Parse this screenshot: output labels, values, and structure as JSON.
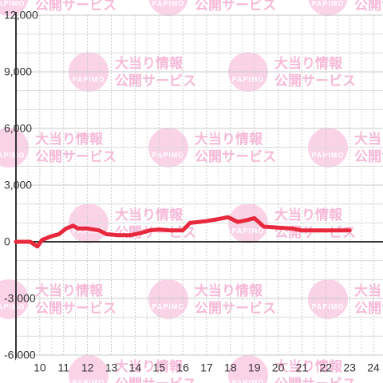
{
  "chart_data": {
    "type": "line",
    "watermark": {
      "lines": [
        "大当り情報",
        "公開サービス"
      ],
      "badge": "PAPIMO"
    },
    "x": [
      9,
      9.6,
      9.9,
      10.1,
      10.5,
      10.8,
      11.1,
      11.4,
      11.6,
      12,
      12.5,
      12.8,
      13.3,
      13.8,
      14.2,
      14.6,
      15,
      15.5,
      16,
      16.3,
      16.7,
      17,
      17.5,
      17.9,
      18.3,
      18.7,
      19,
      19.4,
      20,
      20.6,
      21,
      22,
      23
    ],
    "series": [
      {
        "color": "#e8283c",
        "values": [
          0,
          0,
          -250,
          100,
          300,
          400,
          700,
          850,
          700,
          700,
          600,
          400,
          350,
          350,
          450,
          600,
          650,
          600,
          600,
          1000,
          1050,
          1100,
          1200,
          1300,
          1050,
          1150,
          1250,
          800,
          750,
          700,
          600,
          600,
          600
        ]
      }
    ],
    "xlim": [
      9,
      24.4
    ],
    "xticks": [
      10,
      11,
      12,
      13,
      14,
      15,
      16,
      17,
      18,
      19,
      20,
      21,
      22,
      23,
      24
    ],
    "ylim": [
      -6000,
      12000
    ],
    "yticks": [
      {
        "value": -6000,
        "label": "-6,000"
      },
      {
        "value": -3000,
        "label": "-3,000"
      },
      0,
      {
        "value": 3000,
        "label": "3,000"
      },
      {
        "value": 6000,
        "label": "6,000"
      },
      {
        "value": 9000,
        "label": "9,000"
      },
      {
        "value": 12000,
        "label": "12,000"
      }
    ],
    "grid": true
  }
}
